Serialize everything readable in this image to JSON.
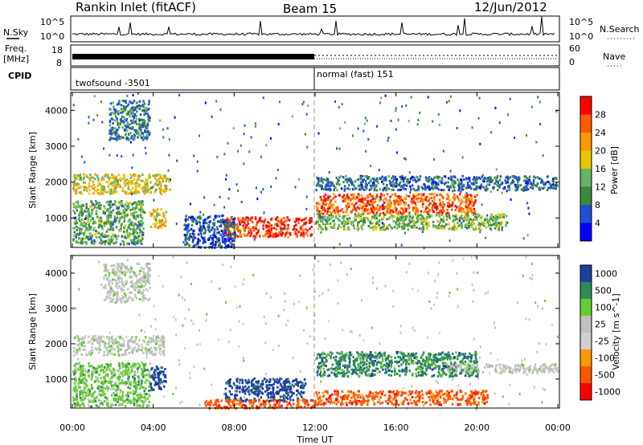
{
  "header": {
    "station": "Rankin Inlet (fitACF)",
    "beam": "Beam 15",
    "date": "12/Jun/2012"
  },
  "noise_panel": {
    "left_label": "N.Sky",
    "right_label": "N.Search",
    "left_ticks": [
      "10^5",
      "10^0"
    ],
    "right_ticks": [
      "10^5",
      "10^0"
    ]
  },
  "freq_panel": {
    "left_label_line1": "Freq.",
    "left_label_line2": "[MHz]",
    "left_ticks": [
      "18",
      "8"
    ],
    "right_label": "Nave",
    "right_ticks": [
      "60",
      "0"
    ]
  },
  "cpid_panel": {
    "label": "CPID",
    "mode_1": "twofsound -3501",
    "mode_2": "normal (fast) 151",
    "switch_hour": 12
  },
  "colors": {
    "power_scale": [
      "#0000ff",
      "#1f4fd6",
      "#3a8a3a",
      "#66b366",
      "#e6c800",
      "#ff9900",
      "#ff5a00",
      "#ff0000"
    ],
    "velocity_scale": [
      "#ff0000",
      "#ff5500",
      "#ff9900",
      "#d0d0d0",
      "#c0c0c0",
      "#66cc33",
      "#2e8b57",
      "#1e3fa0"
    ]
  },
  "chart_data": [
    {
      "type": "heatmap",
      "name": "Power",
      "xlabel": "",
      "ylabel": "Slant Range [km]",
      "x_range_hours": [
        0,
        24
      ],
      "ylim": [
        180,
        4500
      ],
      "yticks": [
        "1000",
        "2000",
        "3000",
        "4000"
      ],
      "colorbar_label": "Power [dB]",
      "colorbar_ticks": [
        "4",
        "8",
        "12",
        "16",
        "20",
        "24",
        "28"
      ],
      "colorbar_range": [
        0,
        32
      ],
      "features": [
        {
          "t0": 0.0,
          "t1": 4.8,
          "r0": 1700,
          "r1": 2250,
          "level": 18
        },
        {
          "t0": 0.0,
          "t1": 3.5,
          "r0": 300,
          "r1": 1500,
          "level": 12
        },
        {
          "t0": 3.8,
          "t1": 4.6,
          "r0": 750,
          "r1": 1300,
          "level": 20
        },
        {
          "t0": 7.4,
          "t1": 11.8,
          "r0": 500,
          "r1": 1050,
          "level": 28
        },
        {
          "t0": 12.0,
          "t1": 20.0,
          "r0": 1150,
          "r1": 1700,
          "level": 26
        },
        {
          "t0": 12.0,
          "t1": 21.5,
          "r0": 700,
          "r1": 1150,
          "level": 14
        },
        {
          "t0": 5.5,
          "t1": 8.0,
          "r0": 200,
          "r1": 1100,
          "level": 6
        },
        {
          "t0": 12.0,
          "t1": 24.0,
          "r0": 1800,
          "r1": 2200,
          "level": 8
        },
        {
          "t0": 1.8,
          "t1": 3.8,
          "r0": 3200,
          "r1": 4300,
          "level": 9
        }
      ]
    },
    {
      "type": "heatmap",
      "name": "Velocity",
      "xlabel": "Time UT",
      "ylabel": "Slant Range [km]",
      "x_range_hours": [
        0,
        24
      ],
      "ylim": [
        180,
        4500
      ],
      "xticks": [
        "00:00",
        "04:00",
        "08:00",
        "12:00",
        "16:00",
        "20:00",
        "00:00"
      ],
      "yticks": [
        "1000",
        "2000",
        "3000",
        "4000"
      ],
      "colorbar_label": "Velocity [m s^-1]",
      "colorbar_ticks": [
        "1000",
        "500",
        "100",
        "25",
        "-25",
        "-100",
        "-500",
        "-1000"
      ],
      "features": [
        {
          "t0": 0.0,
          "t1": 4.5,
          "r0": 1700,
          "r1": 2250,
          "level": 25
        },
        {
          "t0": 0.0,
          "t1": 3.8,
          "r0": 250,
          "r1": 1500,
          "level": 100
        },
        {
          "t0": 3.8,
          "t1": 4.6,
          "r0": 700,
          "r1": 1400,
          "level": 1000
        },
        {
          "t0": 7.5,
          "t1": 11.5,
          "r0": 400,
          "r1": 1050,
          "level": 1000
        },
        {
          "t0": 6.5,
          "t1": 12.0,
          "r0": 200,
          "r1": 450,
          "level": -500
        },
        {
          "t0": 12.0,
          "t1": 20.0,
          "r0": 1100,
          "r1": 1800,
          "level": 500
        },
        {
          "t0": 12.0,
          "t1": 20.5,
          "r0": 300,
          "r1": 700,
          "level": -500
        },
        {
          "t0": 18.5,
          "t1": 24.0,
          "r0": 1200,
          "r1": 1450,
          "level": 25
        },
        {
          "t0": 1.5,
          "t1": 3.8,
          "r0": 3200,
          "r1": 4300,
          "level": 25
        }
      ]
    }
  ]
}
